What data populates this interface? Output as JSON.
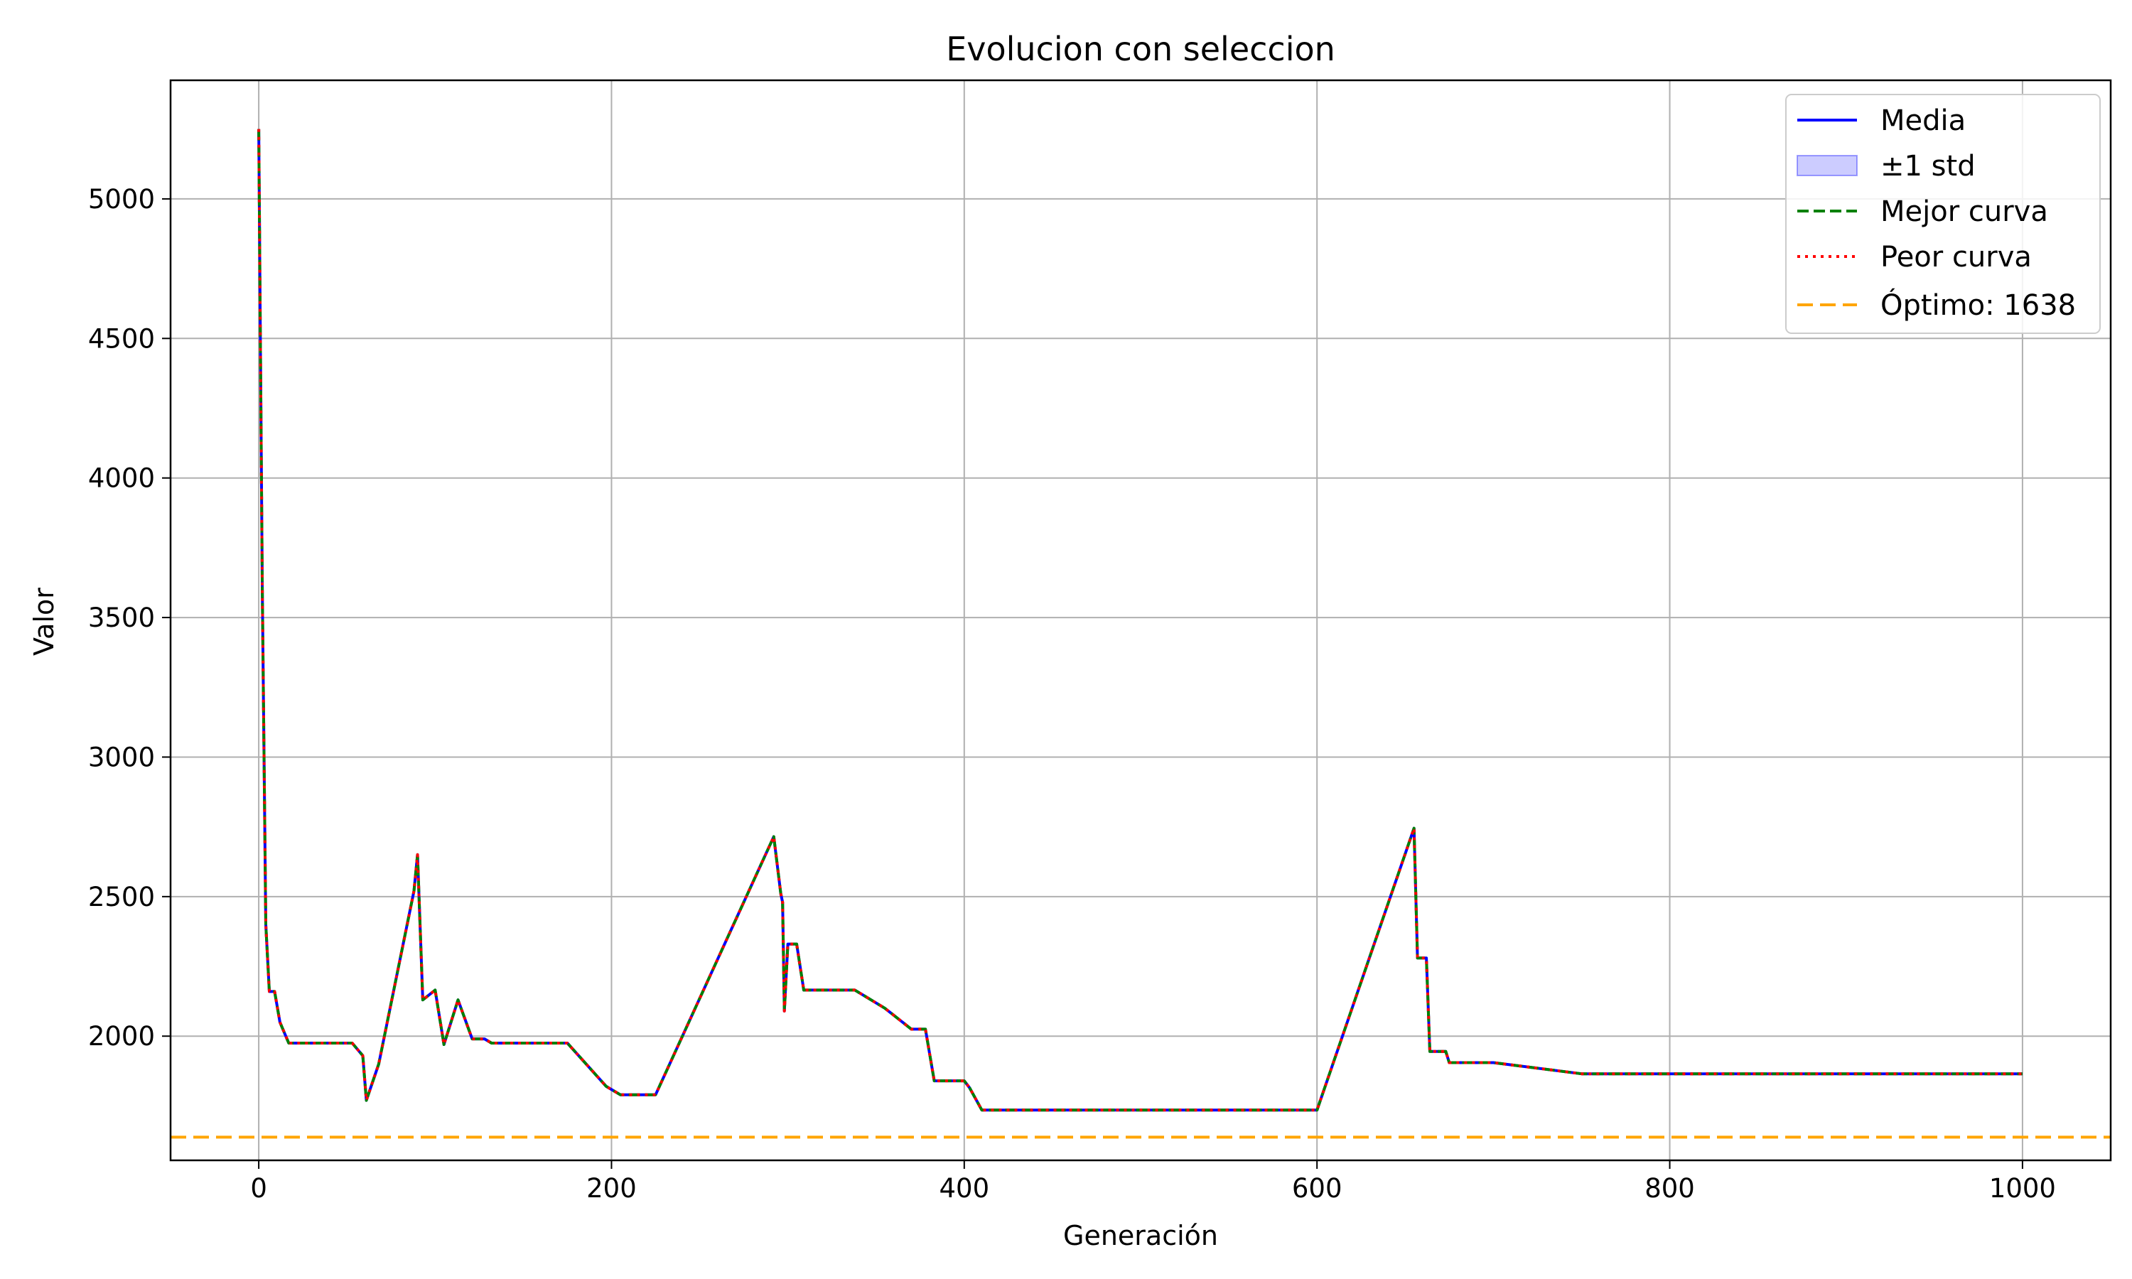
{
  "chart_data": {
    "type": "line",
    "title": "Evolucion con seleccion",
    "xlabel": "Generación",
    "ylabel": "Valor",
    "xlim": [
      -50,
      1050
    ],
    "ylim": [
      1555,
      5425
    ],
    "xticks": [
      0,
      200,
      400,
      600,
      800,
      1000
    ],
    "yticks": [
      2000,
      2500,
      3000,
      3500,
      4000,
      4500,
      5000
    ],
    "grid": true,
    "legend_position": "top-right",
    "optimum": {
      "label": "Óptimo: 1638",
      "value": 1638,
      "color": "#ffa500"
    },
    "x": [
      0,
      2,
      4,
      6,
      9,
      12,
      17,
      53,
      59,
      61,
      68,
      88,
      90,
      93,
      100,
      105,
      113,
      121,
      128,
      132,
      175,
      197,
      205,
      225,
      292,
      296,
      297,
      298,
      300,
      305,
      309,
      338,
      355,
      370,
      378,
      383,
      400,
      403,
      410,
      600,
      655,
      657,
      662,
      664,
      673,
      675,
      700,
      750,
      1000
    ],
    "series": [
      {
        "name": "Media",
        "color": "#0000ff",
        "style": "solid",
        "values": [
          5250,
          3600,
          2400,
          2160,
          2160,
          2050,
          1975,
          1975,
          1930,
          1770,
          1900,
          2520,
          2650,
          2130,
          2165,
          1970,
          2130,
          1990,
          1990,
          1975,
          1975,
          1820,
          1790,
          1790,
          2715,
          2510,
          2480,
          2090,
          2330,
          2330,
          2165,
          2165,
          2100,
          2025,
          2025,
          1840,
          1840,
          1815,
          1735,
          1735,
          2745,
          2280,
          2280,
          1945,
          1945,
          1905,
          1905,
          1865,
          1865
        ]
      },
      {
        "name": "±1 std",
        "color": "#0000ff",
        "style": "band"
      },
      {
        "name": "Mejor curva",
        "color": "#008000",
        "style": "dashed",
        "values": [
          5250,
          3600,
          2400,
          2160,
          2160,
          2050,
          1975,
          1975,
          1930,
          1770,
          1900,
          2520,
          2650,
          2130,
          2165,
          1970,
          2130,
          1990,
          1990,
          1975,
          1975,
          1820,
          1790,
          1790,
          2715,
          2510,
          2480,
          2090,
          2330,
          2330,
          2165,
          2165,
          2100,
          2025,
          2025,
          1840,
          1840,
          1815,
          1735,
          1735,
          2745,
          2280,
          2280,
          1945,
          1945,
          1905,
          1905,
          1865,
          1865
        ]
      },
      {
        "name": "Peor curva",
        "color": "#ff0000",
        "style": "dotted",
        "values": [
          5250,
          3600,
          2400,
          2160,
          2160,
          2050,
          1975,
          1975,
          1930,
          1770,
          1900,
          2520,
          2650,
          2130,
          2165,
          1970,
          2130,
          1990,
          1990,
          1975,
          1975,
          1820,
          1790,
          1790,
          2715,
          2510,
          2480,
          2090,
          2330,
          2330,
          2165,
          2165,
          2100,
          2025,
          2025,
          1840,
          1840,
          1815,
          1735,
          1735,
          2745,
          2280,
          2280,
          1945,
          1945,
          1905,
          1905,
          1865,
          1865
        ]
      }
    ],
    "legend": [
      "Media",
      "±1 std",
      "Mejor curva",
      "Peor curva",
      "Óptimo: 1638"
    ]
  }
}
